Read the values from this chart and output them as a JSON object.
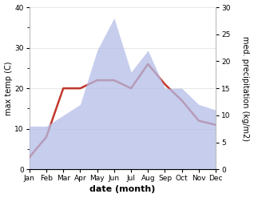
{
  "months": [
    "Jan",
    "Feb",
    "Mar",
    "Apr",
    "May",
    "Jun",
    "Jul",
    "Aug",
    "Sep",
    "Oct",
    "Nov",
    "Dec"
  ],
  "temperature": [
    3,
    8,
    20,
    20,
    22,
    22,
    20,
    26,
    21,
    17,
    12,
    11
  ],
  "precipitation": [
    8,
    8,
    10,
    12,
    22,
    28,
    18,
    22,
    15,
    15,
    12,
    11
  ],
  "temp_ylim": [
    0,
    40
  ],
  "precip_ylim": [
    0,
    30
  ],
  "temp_color": "#c0392b",
  "precip_fill_color": "#b3bde8",
  "precip_fill_alpha": 0.75,
  "xlabel": "date (month)",
  "ylabel_left": "max temp (C)",
  "ylabel_right": "med. precipitation (kg/m2)",
  "bg_color": "#ffffff",
  "temp_linewidth": 1.8,
  "tick_fontsize": 6.5,
  "label_fontsize": 7,
  "xlabel_fontsize": 8
}
